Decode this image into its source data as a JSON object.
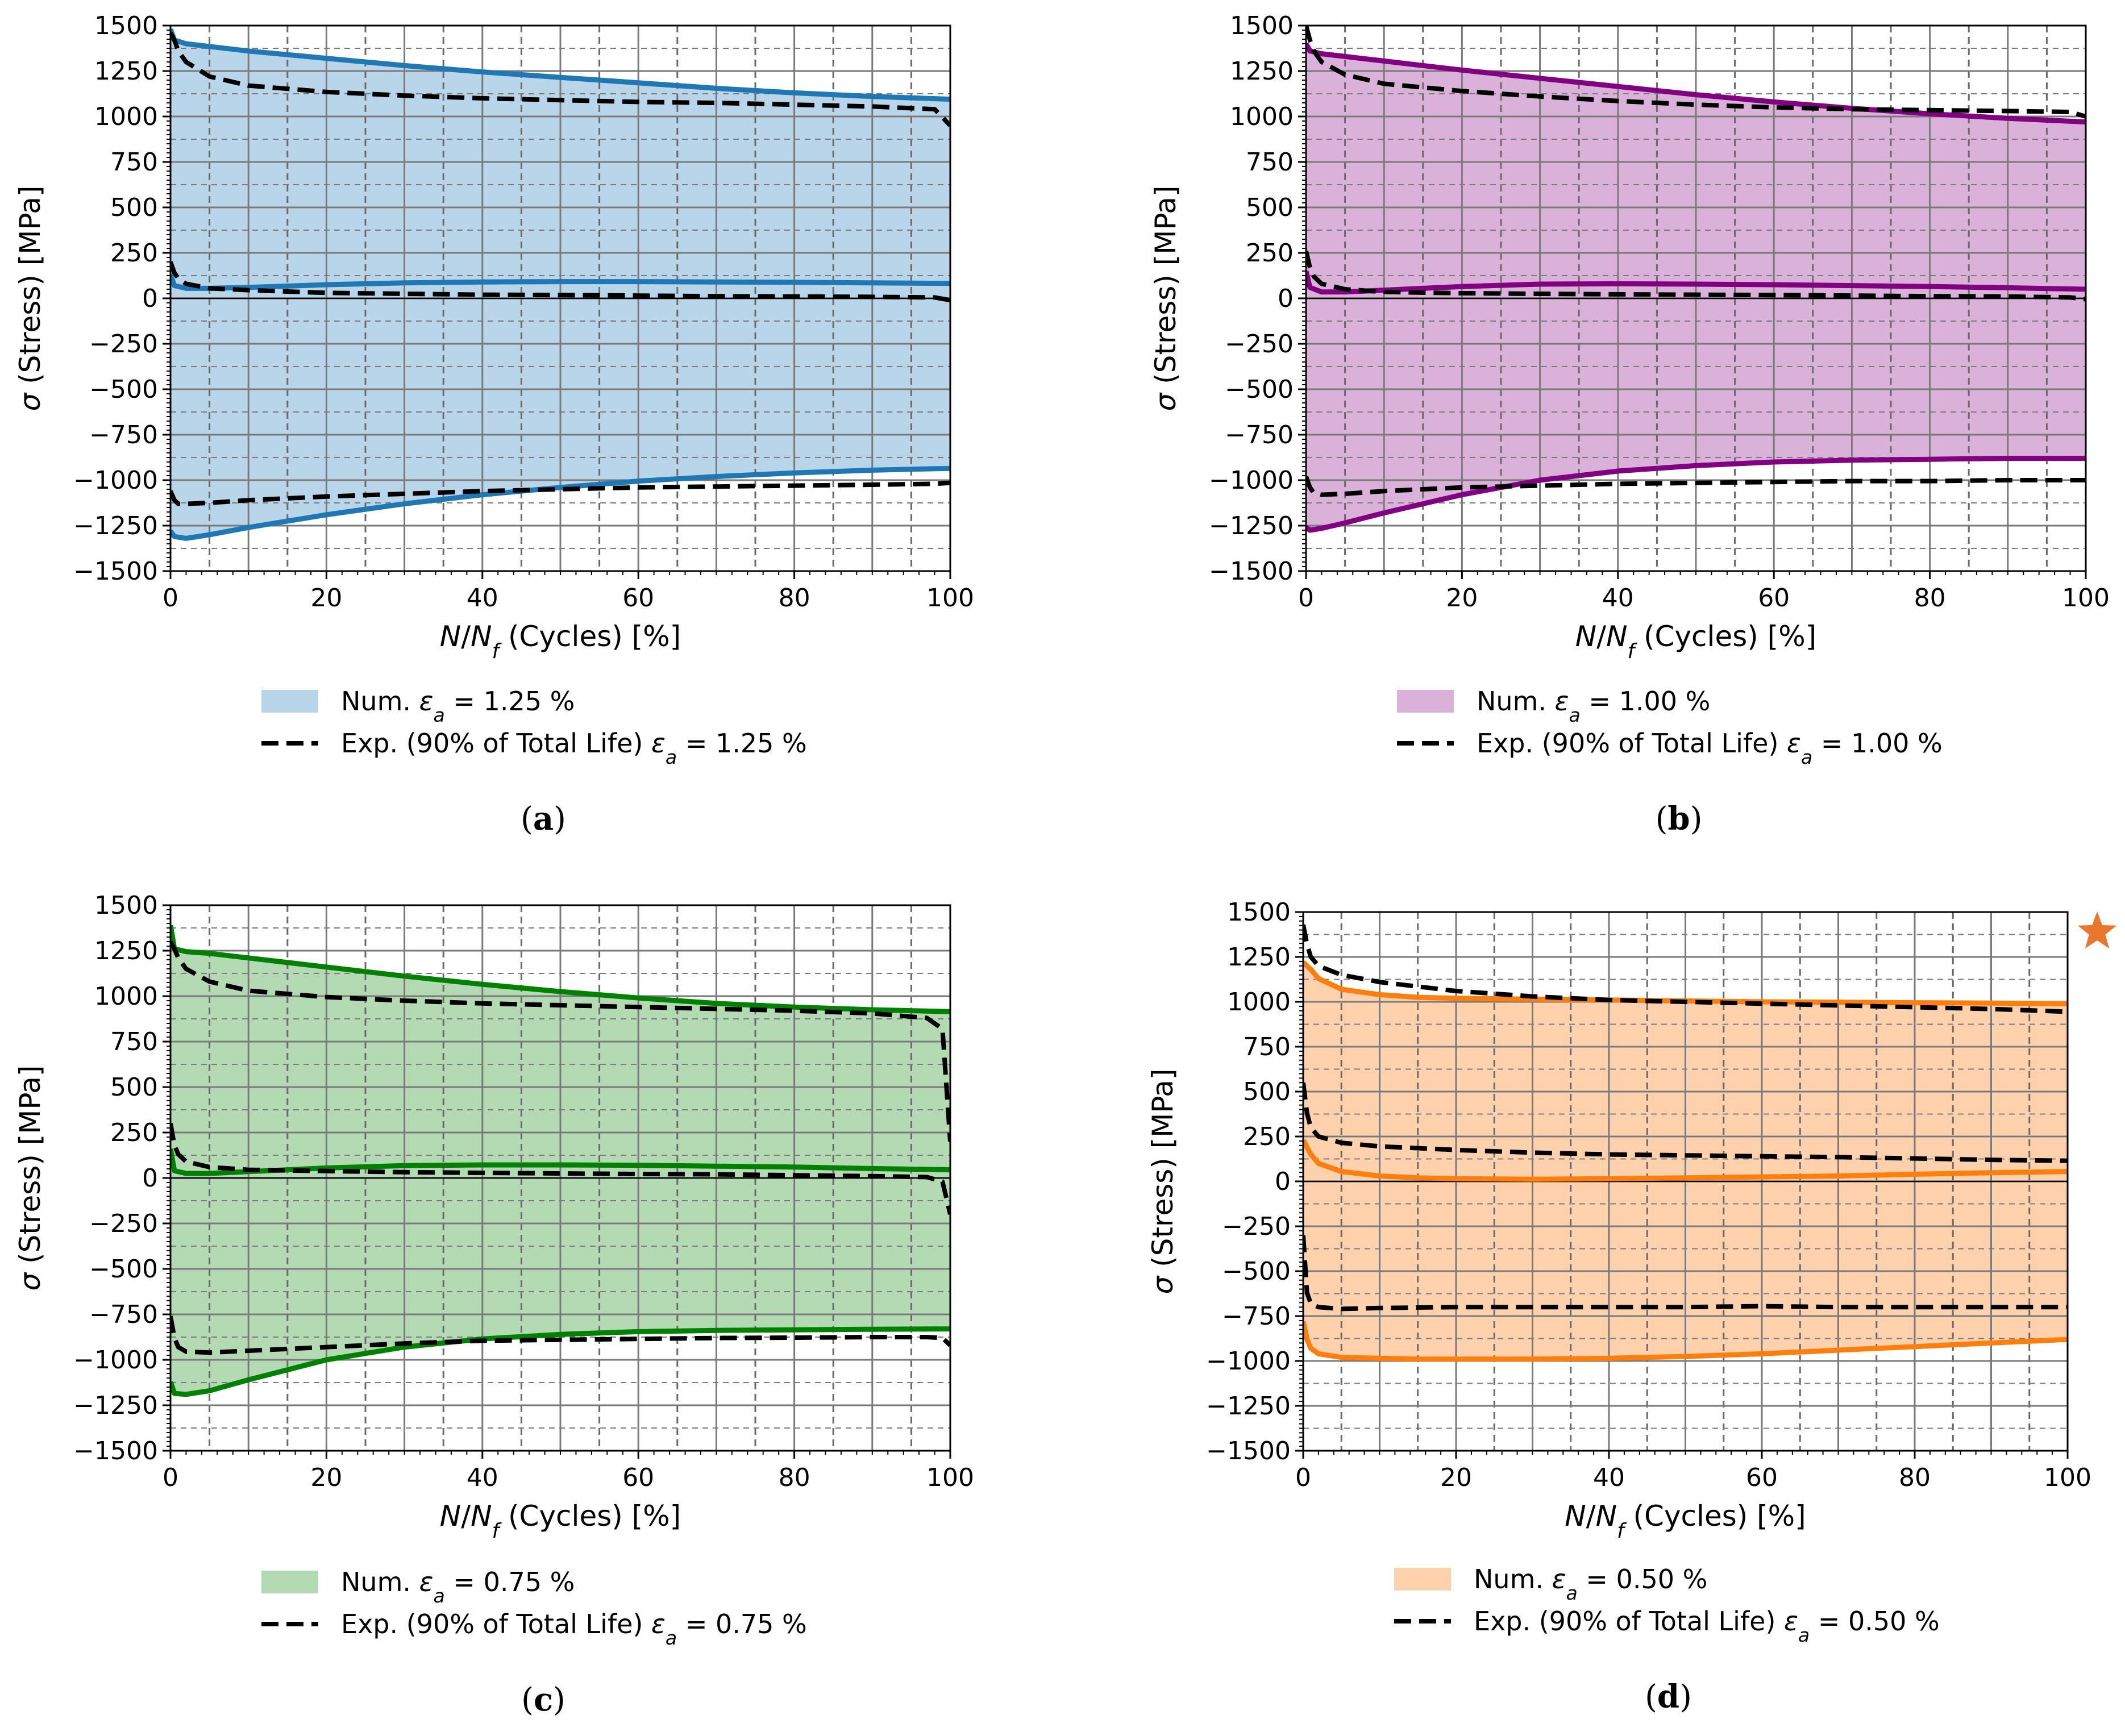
{
  "chart_data": [
    {
      "type": "area",
      "caption": "(a)",
      "xlabel": "N/N_f (Cycles) [%]",
      "ylabel": "σ (Stress) [MPa]",
      "xlim": [
        0,
        100
      ],
      "ylim": [
        -1500,
        1500
      ],
      "xticks": [
        "0",
        "20",
        "40",
        "60",
        "80",
        "100"
      ],
      "yticks": [
        "-1500",
        "-1250",
        "-1000",
        "-750",
        "-500",
        "-250",
        "0",
        "250",
        "500",
        "750",
        "1000",
        "1250",
        "1500"
      ],
      "grid": true,
      "color": "#1f77b4",
      "fill": "#b9d5ea",
      "legend": [
        "Num. ε_a = 1.25 %",
        "Exp. (90% of Total Life) ε_a = 1.25 %"
      ],
      "series": [
        {
          "kind": "numerical",
          "role": "max",
          "x": [
            0,
            0.5,
            2,
            5,
            10,
            20,
            30,
            40,
            50,
            60,
            70,
            80,
            90,
            100
          ],
          "y": [
            1480,
            1420,
            1400,
            1385,
            1360,
            1320,
            1280,
            1245,
            1215,
            1185,
            1155,
            1130,
            1110,
            1095
          ]
        },
        {
          "kind": "numerical",
          "role": "mean",
          "x": [
            0,
            0.5,
            2,
            5,
            10,
            20,
            30,
            40,
            50,
            60,
            70,
            80,
            90,
            100
          ],
          "y": [
            130,
            70,
            55,
            55,
            60,
            75,
            85,
            90,
            92,
            92,
            90,
            88,
            85,
            82
          ]
        },
        {
          "kind": "numerical",
          "role": "min",
          "x": [
            0,
            0.5,
            2,
            5,
            10,
            20,
            30,
            40,
            50,
            60,
            70,
            80,
            90,
            100
          ],
          "y": [
            -1280,
            -1310,
            -1320,
            -1300,
            -1260,
            -1190,
            -1130,
            -1080,
            -1040,
            -1005,
            -980,
            -960,
            -945,
            -935
          ]
        },
        {
          "kind": "experimental",
          "role": "max",
          "x": [
            0,
            0.5,
            1,
            2,
            5,
            10,
            20,
            30,
            40,
            50,
            60,
            70,
            80,
            90,
            98,
            100
          ],
          "y": [
            1460,
            1420,
            1360,
            1300,
            1220,
            1170,
            1135,
            1115,
            1100,
            1090,
            1080,
            1075,
            1065,
            1055,
            1040,
            950
          ]
        },
        {
          "kind": "experimental",
          "role": "mean",
          "x": [
            0,
            0.5,
            1,
            2,
            5,
            10,
            20,
            30,
            40,
            50,
            60,
            70,
            80,
            90,
            98,
            100
          ],
          "y": [
            200,
            140,
            110,
            80,
            55,
            45,
            30,
            25,
            20,
            18,
            15,
            12,
            10,
            8,
            5,
            -10
          ]
        },
        {
          "kind": "experimental",
          "role": "min",
          "x": [
            0,
            0.5,
            1,
            2,
            5,
            10,
            20,
            30,
            40,
            50,
            60,
            70,
            80,
            90,
            98,
            100
          ],
          "y": [
            -1060,
            -1110,
            -1130,
            -1130,
            -1125,
            -1110,
            -1090,
            -1075,
            -1060,
            -1050,
            -1040,
            -1035,
            -1030,
            -1025,
            -1020,
            -1015
          ]
        }
      ]
    },
    {
      "type": "area",
      "caption": "(b)",
      "xlabel": "N/N_f (Cycles) [%]",
      "ylabel": "σ (Stress) [MPa]",
      "xlim": [
        0,
        100
      ],
      "ylim": [
        -1500,
        1500
      ],
      "xticks": [
        "0",
        "20",
        "40",
        "60",
        "80",
        "100"
      ],
      "yticks": [
        "-1500",
        "-1250",
        "-1000",
        "-750",
        "-500",
        "-250",
        "0",
        "250",
        "500",
        "750",
        "1000",
        "1250",
        "1500"
      ],
      "grid": true,
      "color": "#800080",
      "fill": "#d9b1d9",
      "legend": [
        "Num. ε_a = 1.00 %",
        "Exp. (90% of Total Life) ε_a = 1.00 %"
      ],
      "series": [
        {
          "kind": "numerical",
          "role": "max",
          "x": [
            0,
            0.5,
            2,
            5,
            10,
            20,
            30,
            40,
            50,
            60,
            70,
            80,
            90,
            100
          ],
          "y": [
            1400,
            1360,
            1345,
            1330,
            1305,
            1255,
            1210,
            1165,
            1120,
            1080,
            1045,
            1015,
            990,
            970
          ]
        },
        {
          "kind": "numerical",
          "role": "mean",
          "x": [
            0,
            0.5,
            2,
            5,
            10,
            20,
            30,
            40,
            50,
            60,
            70,
            80,
            90,
            100
          ],
          "y": [
            150,
            60,
            35,
            35,
            45,
            65,
            78,
            80,
            78,
            75,
            70,
            65,
            58,
            50
          ]
        },
        {
          "kind": "numerical",
          "role": "min",
          "x": [
            0,
            0.5,
            2,
            5,
            10,
            20,
            30,
            40,
            50,
            60,
            70,
            80,
            90,
            100
          ],
          "y": [
            -1260,
            -1275,
            -1265,
            -1235,
            -1180,
            -1080,
            -1000,
            -950,
            -920,
            -900,
            -890,
            -885,
            -880,
            -880
          ]
        },
        {
          "kind": "experimental",
          "role": "max",
          "x": [
            0,
            0.5,
            1,
            2,
            5,
            10,
            20,
            30,
            40,
            50,
            60,
            70,
            80,
            90,
            98,
            100
          ],
          "y": [
            1500,
            1420,
            1360,
            1300,
            1230,
            1180,
            1140,
            1110,
            1085,
            1065,
            1050,
            1040,
            1035,
            1030,
            1025,
            1000
          ]
        },
        {
          "kind": "experimental",
          "role": "mean",
          "x": [
            0,
            0.5,
            1,
            2,
            5,
            10,
            20,
            30,
            40,
            50,
            60,
            70,
            80,
            90,
            98,
            100
          ],
          "y": [
            260,
            170,
            120,
            80,
            50,
            35,
            28,
            25,
            22,
            20,
            18,
            15,
            12,
            10,
            5,
            -5
          ]
        },
        {
          "kind": "experimental",
          "role": "min",
          "x": [
            0,
            0.5,
            1,
            2,
            5,
            10,
            20,
            30,
            40,
            50,
            60,
            70,
            80,
            90,
            98,
            100
          ],
          "y": [
            -980,
            -1040,
            -1070,
            -1080,
            -1075,
            -1060,
            -1040,
            -1030,
            -1020,
            -1015,
            -1010,
            -1005,
            -1005,
            -1000,
            -1000,
            -1000
          ]
        }
      ]
    },
    {
      "type": "area",
      "caption": "(c)",
      "xlabel": "N/N_f (Cycles) [%]",
      "ylabel": "σ (Stress) [MPa]",
      "xlim": [
        0,
        100
      ],
      "ylim": [
        -1500,
        1500
      ],
      "xticks": [
        "0",
        "20",
        "40",
        "60",
        "80",
        "100"
      ],
      "yticks": [
        "-1500",
        "-1250",
        "-1000",
        "-750",
        "-500",
        "-250",
        "0",
        "250",
        "500",
        "750",
        "1000",
        "1250",
        "1500"
      ],
      "grid": true,
      "color": "#008000",
      "fill": "#b3dab3",
      "legend": [
        "Num. ε_a = 0.75 %",
        "Exp. (90% of Total Life) ε_a = 0.75 %"
      ],
      "series": [
        {
          "kind": "numerical",
          "role": "max",
          "x": [
            0,
            0.5,
            2,
            5,
            10,
            20,
            30,
            40,
            50,
            60,
            70,
            80,
            90,
            100
          ],
          "y": [
            1390,
            1260,
            1245,
            1235,
            1210,
            1160,
            1110,
            1065,
            1025,
            990,
            960,
            940,
            925,
            915
          ]
        },
        {
          "kind": "numerical",
          "role": "mean",
          "x": [
            0,
            0.5,
            2,
            5,
            10,
            20,
            30,
            40,
            50,
            60,
            70,
            80,
            90,
            100
          ],
          "y": [
            160,
            40,
            25,
            25,
            35,
            55,
            68,
            72,
            72,
            70,
            65,
            60,
            52,
            45
          ]
        },
        {
          "kind": "numerical",
          "role": "min",
          "x": [
            0,
            0.5,
            2,
            5,
            10,
            20,
            30,
            40,
            50,
            60,
            70,
            80,
            90,
            100
          ],
          "y": [
            -1120,
            -1185,
            -1190,
            -1170,
            -1110,
            -1000,
            -930,
            -885,
            -860,
            -845,
            -838,
            -835,
            -832,
            -830
          ]
        },
        {
          "kind": "experimental",
          "role": "max",
          "x": [
            0,
            0.5,
            1,
            2,
            5,
            10,
            20,
            30,
            40,
            50,
            60,
            70,
            80,
            90,
            97,
            99,
            100
          ],
          "y": [
            1300,
            1260,
            1210,
            1150,
            1080,
            1030,
            995,
            975,
            960,
            950,
            940,
            930,
            920,
            905,
            880,
            820,
            200
          ]
        },
        {
          "kind": "experimental",
          "role": "mean",
          "x": [
            0,
            0.5,
            1,
            2,
            5,
            10,
            20,
            30,
            40,
            50,
            60,
            70,
            80,
            90,
            97,
            99,
            100
          ],
          "y": [
            300,
            180,
            130,
            90,
            60,
            45,
            38,
            32,
            28,
            25,
            22,
            20,
            15,
            10,
            5,
            -20,
            -200
          ]
        },
        {
          "kind": "experimental",
          "role": "min",
          "x": [
            0,
            0.5,
            1,
            2,
            5,
            10,
            20,
            30,
            40,
            50,
            60,
            70,
            80,
            90,
            97,
            99,
            100
          ],
          "y": [
            -760,
            -880,
            -930,
            -955,
            -960,
            -950,
            -930,
            -910,
            -895,
            -890,
            -885,
            -880,
            -878,
            -875,
            -875,
            -880,
            -920
          ]
        }
      ]
    },
    {
      "type": "area",
      "caption": "(d)",
      "xlabel": "N/N_f (Cycles) [%]",
      "ylabel": "σ (Stress) [MPa]",
      "xlim": [
        0,
        100
      ],
      "ylim": [
        -1500,
        1500
      ],
      "xticks": [
        "0",
        "20",
        "40",
        "60",
        "80",
        "100"
      ],
      "yticks": [
        "-1500",
        "-1250",
        "-1000",
        "-750",
        "-500",
        "-250",
        "0",
        "250",
        "500",
        "750",
        "1000",
        "1250",
        "1500"
      ],
      "grid": true,
      "color": "#ff7f0e",
      "fill": "#ffd2ad",
      "legend": [
        "Num. ε_a = 0.50 %",
        "Exp. (90% of Total Life) ε_a = 0.50 %"
      ],
      "series": [
        {
          "kind": "numerical",
          "role": "max",
          "x": [
            0,
            0.5,
            1,
            2,
            5,
            10,
            15,
            20,
            30,
            40,
            50,
            60,
            70,
            80,
            90,
            100
          ],
          "y": [
            1220,
            1200,
            1180,
            1130,
            1070,
            1040,
            1025,
            1020,
            1015,
            1010,
            1005,
            1000,
            998,
            995,
            993,
            990
          ]
        },
        {
          "kind": "numerical",
          "role": "mean",
          "x": [
            0,
            0.5,
            1,
            2,
            5,
            10,
            15,
            20,
            30,
            40,
            50,
            60,
            70,
            80,
            90,
            100
          ],
          "y": [
            230,
            190,
            150,
            100,
            55,
            30,
            20,
            15,
            12,
            15,
            20,
            25,
            30,
            40,
            48,
            55
          ]
        },
        {
          "kind": "numerical",
          "role": "min",
          "x": [
            0,
            0.5,
            1,
            2,
            5,
            10,
            15,
            20,
            30,
            40,
            50,
            60,
            70,
            80,
            90,
            100
          ],
          "y": [
            -780,
            -880,
            -930,
            -960,
            -980,
            -985,
            -990,
            -990,
            -990,
            -985,
            -975,
            -960,
            -940,
            -920,
            -900,
            -880
          ]
        },
        {
          "kind": "experimental",
          "role": "max",
          "x": [
            0,
            0.5,
            1,
            2,
            5,
            10,
            20,
            30,
            40,
            50,
            60,
            70,
            80,
            90,
            100
          ],
          "y": [
            1430,
            1320,
            1250,
            1200,
            1150,
            1110,
            1060,
            1030,
            1010,
            1000,
            990,
            980,
            970,
            960,
            945
          ]
        },
        {
          "kind": "experimental",
          "role": "mean",
          "x": [
            0,
            0.5,
            1,
            2,
            5,
            10,
            20,
            30,
            40,
            50,
            60,
            70,
            80,
            90,
            100
          ],
          "y": [
            550,
            380,
            300,
            250,
            215,
            195,
            175,
            160,
            150,
            145,
            140,
            135,
            128,
            120,
            115
          ]
        },
        {
          "kind": "experimental",
          "role": "min",
          "x": [
            0,
            0.5,
            1,
            2,
            5,
            10,
            20,
            30,
            40,
            50,
            60,
            70,
            80,
            90,
            100
          ],
          "y": [
            -300,
            -620,
            -680,
            -700,
            -710,
            -705,
            -700,
            -700,
            -700,
            -700,
            -695,
            -700,
            -700,
            -700,
            -700
          ]
        }
      ]
    }
  ],
  "marker": {
    "icon": "star-icon",
    "color": "#e8762c"
  }
}
